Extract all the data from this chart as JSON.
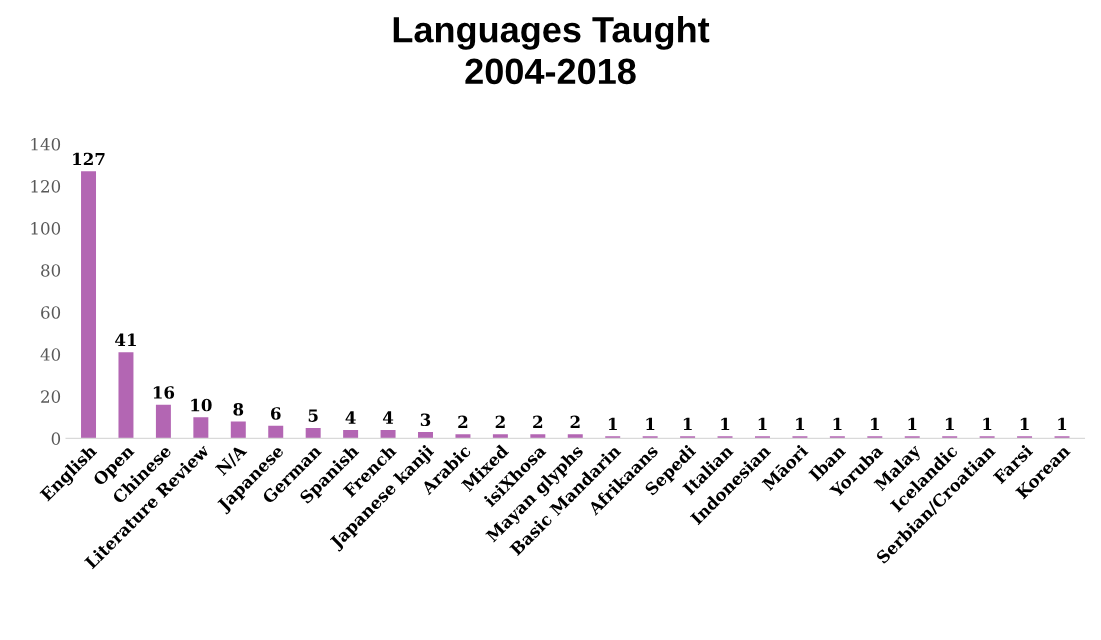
{
  "chart_data": {
    "type": "bar",
    "title": "Languages Taught\n2004-2018",
    "categories": [
      "English",
      "Open",
      "Chinese",
      "Literature Review",
      "N/A",
      "Japanese",
      "German",
      "Spanish",
      "French",
      "Japanese kanji",
      "Arabic",
      "Mixed",
      "isiXhosa",
      "Mayan glyphs",
      "Basic Mandarin",
      "Afrikaans",
      "Sepedi",
      "Italian",
      "Indonesian",
      "Māori",
      "Iban",
      "Yoruba",
      "Malay",
      "Icelandic",
      "Serbian/Croatian",
      "Farsi",
      "Korean"
    ],
    "values": [
      127,
      41,
      16,
      10,
      8,
      6,
      5,
      4,
      4,
      3,
      2,
      2,
      2,
      2,
      1,
      1,
      1,
      1,
      1,
      1,
      1,
      1,
      1,
      1,
      1,
      1,
      1
    ],
    "color": "#b366b3",
    "ylim": [
      0,
      140
    ],
    "yticks": [
      0,
      20,
      40,
      60,
      80,
      100,
      120,
      140
    ],
    "grid": false,
    "data_labels": true
  }
}
